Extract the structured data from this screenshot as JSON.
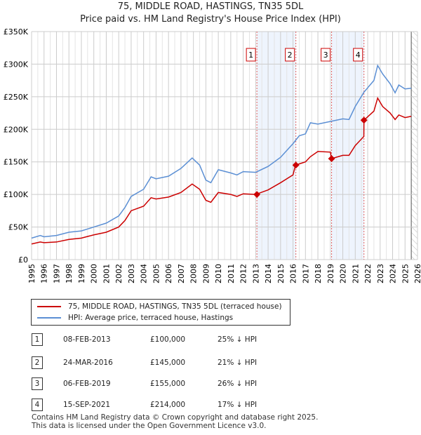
{
  "chart_data": {
    "type": "line",
    "title": "75, MIDDLE ROAD, HASTINGS, TN35 5DL",
    "subtitle": "Price paid vs. HM Land Registry's House Price Index (HPI)",
    "ylim": [
      0,
      350000
    ],
    "xlim": [
      1995,
      2026
    ],
    "y_ticks": [
      {
        "v": 0,
        "label": "£0"
      },
      {
        "v": 50000,
        "label": "£50K"
      },
      {
        "v": 100000,
        "label": "£100K"
      },
      {
        "v": 150000,
        "label": "£150K"
      },
      {
        "v": 200000,
        "label": "£200K"
      },
      {
        "v": 250000,
        "label": "£250K"
      },
      {
        "v": 300000,
        "label": "£300K"
      },
      {
        "v": 350000,
        "label": "£350K"
      }
    ],
    "x_ticks": [
      "1995",
      "1996",
      "1997",
      "1998",
      "1999",
      "2000",
      "2001",
      "2002",
      "2003",
      "2004",
      "2005",
      "2006",
      "2007",
      "2008",
      "2009",
      "2010",
      "2011",
      "2012",
      "2013",
      "2014",
      "2015",
      "2016",
      "2017",
      "2018",
      "2019",
      "2020",
      "2021",
      "2022",
      "2023",
      "2024",
      "2025",
      "2026"
    ],
    "series": [
      {
        "name": "HPI: Average price, terraced house, Hastings",
        "color": "#5b8fd4",
        "x": [
          1995,
          1995.7,
          1996,
          1997,
          1998,
          1999,
          2000,
          2001,
          2002,
          2002.5,
          2003,
          2004,
          2004.6,
          2005,
          2006,
          2007,
          2007.9,
          2008.5,
          2009,
          2009.4,
          2010,
          2011,
          2011.5,
          2012,
          2013,
          2014,
          2015,
          2016,
          2016.5,
          2017,
          2017.4,
          2018,
          2019,
          2020,
          2020.5,
          2021,
          2021.7,
          2022.5,
          2022.8,
          2023.2,
          2023.8,
          2024.2,
          2024.5,
          2025,
          2025.5
        ],
        "y": [
          33000,
          37000,
          35000,
          37000,
          42000,
          44000,
          50000,
          56000,
          67000,
          80000,
          97000,
          108000,
          127000,
          124000,
          128000,
          140000,
          156000,
          145000,
          122000,
          118000,
          138000,
          133000,
          130000,
          135000,
          134000,
          143000,
          157000,
          178000,
          190000,
          193000,
          210000,
          208000,
          212000,
          216000,
          215000,
          235000,
          257000,
          275000,
          298000,
          285000,
          270000,
          256000,
          268000,
          262000,
          263000
        ]
      },
      {
        "name": "75, MIDDLE ROAD, HASTINGS, TN35 5DL (terraced house)",
        "color": "#cc0000",
        "x": [
          1995,
          1995.7,
          1996,
          1997,
          1998,
          1999,
          2000,
          2001,
          2002,
          2002.5,
          2003,
          2004,
          2004.6,
          2005,
          2006,
          2007,
          2007.9,
          2008.5,
          2009,
          2009.4,
          2010,
          2011,
          2011.5,
          2012,
          2013,
          2014,
          2015,
          2016,
          2016.2,
          2017,
          2017.4,
          2018,
          2019,
          2019.1,
          2020,
          2020.5,
          2021,
          2021.69,
          2021.7,
          2022.5,
          2022.8,
          2023.2,
          2023.8,
          2024.2,
          2024.5,
          2025,
          2025.5
        ],
        "y": [
          24000,
          27000,
          26000,
          27000,
          31000,
          33000,
          38000,
          42000,
          50000,
          60000,
          75000,
          82000,
          95000,
          93000,
          96000,
          103000,
          116000,
          108000,
          91000,
          88000,
          103000,
          100000,
          97000,
          101000,
          100000,
          107000,
          118000,
          130000,
          145000,
          150000,
          158000,
          166000,
          165000,
          155000,
          160000,
          160000,
          175000,
          189000,
          214000,
          228000,
          248000,
          235000,
          225000,
          215000,
          222000,
          218000,
          220000
        ]
      }
    ],
    "sales": [
      {
        "n": "1",
        "x": 2013.1,
        "y": 100000
      },
      {
        "n": "2",
        "x": 2016.23,
        "y": 145000
      },
      {
        "n": "3",
        "x": 2019.1,
        "y": 155000
      },
      {
        "n": "4",
        "x": 2021.7,
        "y": 214000
      }
    ],
    "shaded": [
      [
        2013.1,
        2016.23
      ],
      [
        2019.1,
        2021.7
      ]
    ],
    "forecast_from": 2025.5
  },
  "legend": {
    "property": "75, MIDDLE ROAD, HASTINGS, TN35 5DL (terraced house)",
    "hpi": "HPI: Average price, terraced house, Hastings"
  },
  "transactions": [
    {
      "n": "1",
      "date": "08-FEB-2013",
      "price": "£100,000",
      "hpi": "25% ↓ HPI"
    },
    {
      "n": "2",
      "date": "24-MAR-2016",
      "price": "£145,000",
      "hpi": "21% ↓ HPI"
    },
    {
      "n": "3",
      "date": "06-FEB-2019",
      "price": "£155,000",
      "hpi": "26% ↓ HPI"
    },
    {
      "n": "4",
      "date": "15-SEP-2021",
      "price": "£214,000",
      "hpi": "17% ↓ HPI"
    }
  ],
  "footer": {
    "line1": "Contains HM Land Registry data © Crown copyright and database right 2025.",
    "line2": "This data is licensed under the Open Government Licence v3.0."
  }
}
